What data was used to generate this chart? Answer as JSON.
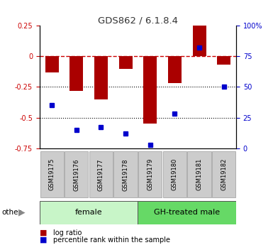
{
  "title": "GDS862 / 6.1.8.4",
  "samples": [
    "GSM19175",
    "GSM19176",
    "GSM19177",
    "GSM19178",
    "GSM19179",
    "GSM19180",
    "GSM19181",
    "GSM19182"
  ],
  "log_ratio": [
    -0.13,
    -0.28,
    -0.35,
    -0.1,
    -0.55,
    -0.22,
    0.25,
    -0.07
  ],
  "percentile_rank": [
    35,
    15,
    17,
    12,
    3,
    28,
    82,
    50
  ],
  "ylim_left": [
    -0.75,
    0.25
  ],
  "ylim_right": [
    0,
    100
  ],
  "yticks_left": [
    0.25,
    0,
    -0.25,
    -0.5,
    -0.75
  ],
  "yticks_right": [
    100,
    75,
    50,
    25,
    0
  ],
  "hlines_dotted": [
    -0.25,
    -0.5
  ],
  "groups": [
    {
      "label": "female",
      "start": 0,
      "end": 4,
      "color": "#c8f5c8"
    },
    {
      "label": "GH-treated male",
      "start": 4,
      "end": 8,
      "color": "#66d966"
    }
  ],
  "bar_color": "#aa0000",
  "dot_color": "#0000cc",
  "zero_line_color": "#cc0000",
  "sample_box_color": "#cccccc",
  "other_label": "other",
  "legend_log_ratio": "log ratio",
  "legend_percentile": "percentile rank within the sample"
}
